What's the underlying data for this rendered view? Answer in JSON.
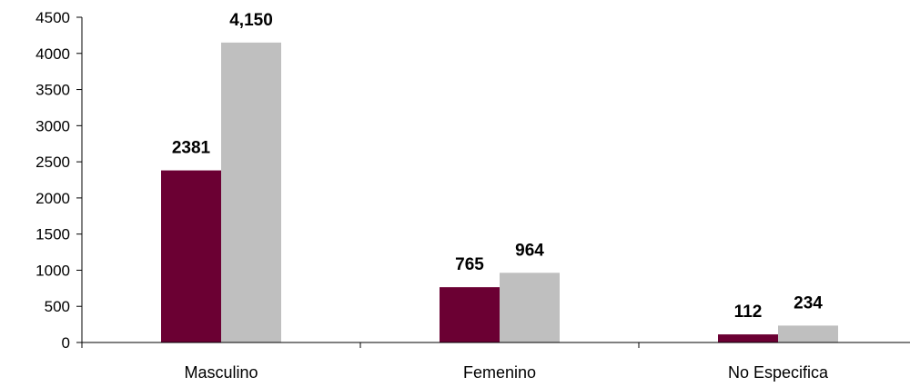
{
  "chart_data": {
    "type": "bar",
    "title": "",
    "xlabel": "",
    "ylabel": "",
    "categories": [
      "Masculino",
      "Femenino",
      "No Especifica"
    ],
    "series": [
      {
        "color": "#6b0033",
        "values": [
          2381,
          765,
          112
        ],
        "value_labels": [
          "2381",
          "765",
          "112"
        ]
      },
      {
        "color": "#bfbfbf",
        "values": [
          4150,
          964,
          234
        ],
        "value_labels": [
          "4,150",
          "964",
          "234"
        ]
      }
    ],
    "ylim": [
      0,
      4500
    ],
    "yticks": [
      "0",
      "500",
      "1000",
      "1500",
      "2000",
      "2500",
      "3000",
      "3500",
      "4000",
      "4500"
    ],
    "grid": false,
    "legend": "none"
  }
}
